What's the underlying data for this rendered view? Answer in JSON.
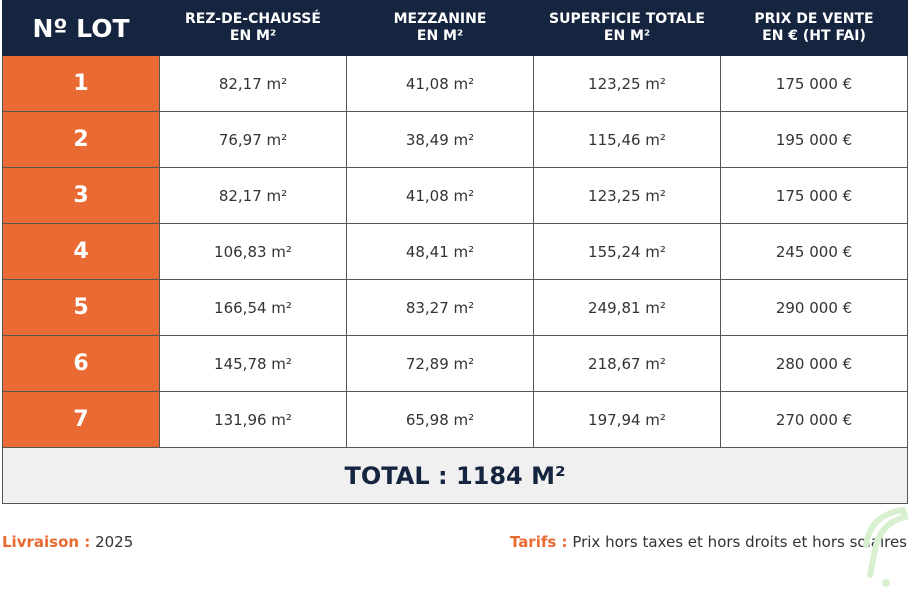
{
  "headers": [
    "Nº LOT",
    "REZ-DE-CHAUSSÉ\nEN M²",
    "MEZZANINE\nEN M²",
    "SUPERFICIE TOTALE\nEN M²",
    "PRIX DE VENTE\nEN € (HT FAI)"
  ],
  "headers_lines": [
    [
      "Nº LOT"
    ],
    [
      "REZ-DE-CHAUSSÉ",
      "EN M²"
    ],
    [
      "MEZZANINE",
      "EN M²"
    ],
    [
      "SUPERFICIE TOTALE",
      "EN M²"
    ],
    [
      "PRIX DE VENTE",
      "EN € (HT FAI)"
    ]
  ],
  "rows": [
    [
      "1",
      "82,17 m²",
      "41,08 m²",
      "123,25 m²",
      "175 000 €"
    ],
    [
      "2",
      "76,97 m²",
      "38,49 m²",
      "115,46 m²",
      "195 000 €"
    ],
    [
      "3",
      "82,17 m²",
      "41,08 m²",
      "123,25 m²",
      "175 000 €"
    ],
    [
      "4",
      "106,83 m²",
      "48,41 m²",
      "155,24 m²",
      "245 000 €"
    ],
    [
      "5",
      "166,54 m²",
      "83,27 m²",
      "249,81 m²",
      "290 000 €"
    ],
    [
      "6",
      "145,78 m²",
      "72,89 m²",
      "218,67 m²",
      "280 000 €"
    ],
    [
      "7",
      "131,96 m²",
      "65,98 m²",
      "197,94 m²",
      "270 000 €"
    ]
  ],
  "total": "TOTAL : 1184 M²",
  "footer": {
    "livraison_label": "Livraison :",
    "livraison_value": "2025",
    "tarifs_label": "Tarifs :",
    "tarifs_value": "Prix hors taxes et hors droits et hors solaires"
  },
  "colors": {
    "navy": "#15243f",
    "orange": "#e96a32"
  }
}
